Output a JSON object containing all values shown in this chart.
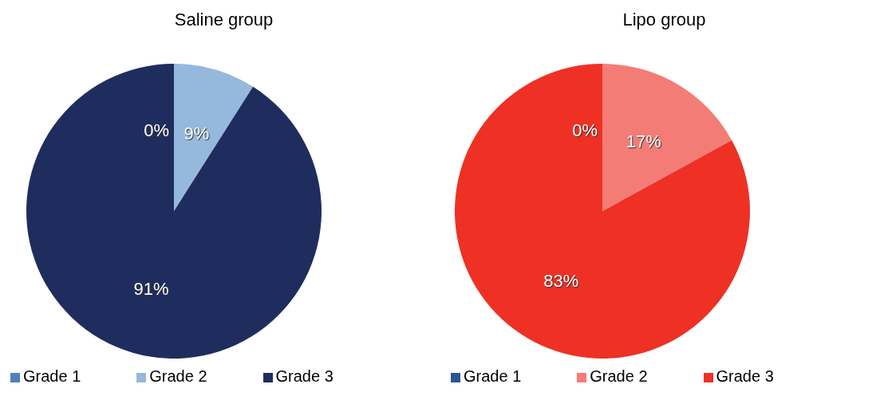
{
  "chart_data": [
    {
      "type": "pie",
      "title": "Saline group",
      "categories": [
        "Grade 1",
        "Grade 2",
        "Grade 3"
      ],
      "values": [
        0,
        9,
        91
      ],
      "colors": [
        "#4f81bd",
        "#95b9dd",
        "#1f2d5e"
      ],
      "value_labels": [
        "0%",
        "9%",
        "91%"
      ],
      "legend": "bottom"
    },
    {
      "type": "pie",
      "title": "Lipo group",
      "categories": [
        "Grade 1",
        "Grade 2",
        "Grade 3"
      ],
      "values": [
        0,
        17,
        83
      ],
      "colors": [
        "#2a5597",
        "#f47c76",
        "#ee3124"
      ],
      "value_labels": [
        "0%",
        "17%",
        "83%"
      ],
      "legend": "bottom"
    }
  ]
}
